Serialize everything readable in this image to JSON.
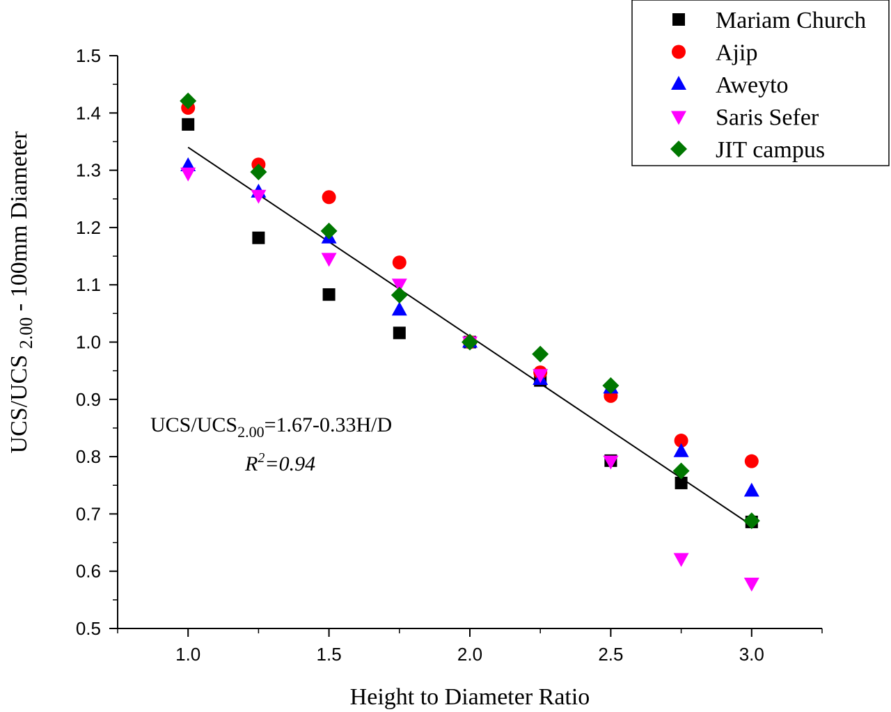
{
  "chart_data": {
    "type": "scatter",
    "title": "",
    "xlabel": "Height to Diameter Ratio",
    "ylabel_parts": {
      "main": "UCS/UCS ",
      "sub": "2.00",
      "rest": " - 100mm Diameter"
    },
    "xlim": [
      0.75,
      3.25
    ],
    "ylim": [
      0.5,
      1.5
    ],
    "xticks": [
      "1.0",
      "1.5",
      "2.0",
      "2.5",
      "3.0"
    ],
    "yticks": [
      "0.5",
      "0.6",
      "0.7",
      "0.8",
      "0.9",
      "1.0",
      "1.1",
      "1.2",
      "1.3",
      "1.4",
      "1.5"
    ],
    "grid": false,
    "legend_position": "top-right",
    "x": [
      1.0,
      1.25,
      1.5,
      1.75,
      2.0,
      2.25,
      2.5,
      2.75,
      3.0
    ],
    "series": [
      {
        "name": "Mariam Church",
        "marker": "square",
        "color": "#000000",
        "values": [
          1.38,
          1.182,
          1.083,
          1.016,
          1.0,
          0.933,
          0.793,
          0.754,
          0.686
        ]
      },
      {
        "name": "Ajip",
        "marker": "circle",
        "color": "#ff0000",
        "values": [
          1.409,
          1.31,
          1.253,
          1.139,
          1.0,
          0.947,
          0.906,
          0.828,
          0.792
        ]
      },
      {
        "name": "Aweyto",
        "marker": "triangle-up",
        "color": "#0000ff",
        "values": [
          1.308,
          1.262,
          1.182,
          1.056,
          1.0,
          0.935,
          0.92,
          0.809,
          0.74
        ]
      },
      {
        "name": "Saris Sefer",
        "marker": "triangle-down",
        "color": "#ff00ff",
        "values": [
          1.295,
          1.256,
          1.146,
          1.101,
          1.0,
          0.943,
          0.792,
          0.622,
          0.579
        ]
      },
      {
        "name": "JIT campus",
        "marker": "diamond",
        "color": "#007700",
        "values": [
          1.421,
          1.297,
          1.194,
          1.082,
          1.0,
          0.979,
          0.924,
          0.775,
          0.688
        ]
      }
    ],
    "fit": {
      "intercept": 1.67,
      "slope": -0.33,
      "x_range": [
        1.0,
        3.0
      ]
    },
    "annotation": {
      "eq_pre": "UCS/UCS",
      "eq_sub": "2.00",
      "eq_post": "=1.67-0.33H/D",
      "r2_r": "R",
      "r2_sup": "2",
      "r2_post": "=0.94"
    }
  }
}
